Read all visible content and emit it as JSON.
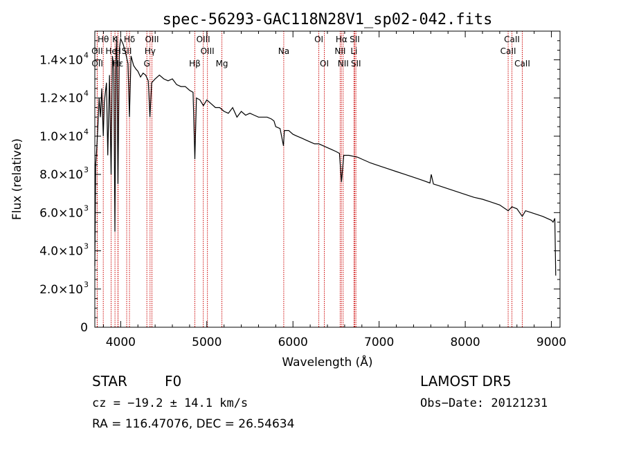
{
  "chart_data": {
    "type": "line",
    "title": "spec-56293-GAC118N28V1_sp02-042.fits",
    "xlabel": "Wavelength (Å)",
    "ylabel": "Flux (relative)",
    "xlim": [
      3700,
      9100
    ],
    "ylim": [
      0,
      15500
    ],
    "x_ticks": [
      4000,
      5000,
      6000,
      7000,
      8000,
      9000
    ],
    "y_ticks": [
      {
        "value": 0,
        "mantissa": "0",
        "exponent": ""
      },
      {
        "value": 2000,
        "mantissa": "2.0×10",
        "exponent": "3"
      },
      {
        "value": 4000,
        "mantissa": "4.0×10",
        "exponent": "3"
      },
      {
        "value": 6000,
        "mantissa": "6.0×10",
        "exponent": "3"
      },
      {
        "value": 8000,
        "mantissa": "8.0×10",
        "exponent": "3"
      },
      {
        "value": 10000,
        "mantissa": "1.0×10",
        "exponent": "4"
      },
      {
        "value": 12000,
        "mantissa": "1.2×10",
        "exponent": "4"
      },
      {
        "value": 14000,
        "mantissa": "1.4×10",
        "exponent": "4"
      }
    ],
    "series": [
      {
        "color": "#000000",
        "x": [
          3700,
          3710,
          3720,
          3735,
          3750,
          3765,
          3780,
          3798,
          3810,
          3835,
          3850,
          3870,
          3889,
          3905,
          3920,
          3933,
          3945,
          3955,
          3968,
          3985,
          4000,
          4030,
          4060,
          4085,
          4102,
          4120,
          4150,
          4180,
          4200,
          4230,
          4260,
          4290,
          4320,
          4340,
          4360,
          4400,
          4450,
          4500,
          4550,
          4600,
          4650,
          4700,
          4750,
          4800,
          4840,
          4861,
          4880,
          4920,
          4960,
          5000,
          5050,
          5100,
          5150,
          5200,
          5250,
          5300,
          5350,
          5400,
          5450,
          5500,
          5550,
          5600,
          5650,
          5700,
          5750,
          5780,
          5800,
          5850,
          5890,
          5900,
          5950,
          6000,
          6050,
          6100,
          6150,
          6200,
          6250,
          6300,
          6350,
          6400,
          6450,
          6500,
          6540,
          6563,
          6590,
          6650,
          6700,
          6750,
          6800,
          6900,
          7000,
          7100,
          7200,
          7300,
          7400,
          7500,
          7590,
          7605,
          7630,
          7700,
          7800,
          7900,
          8000,
          8100,
          8200,
          8300,
          8400,
          8498,
          8542,
          8600,
          8662,
          8700,
          8800,
          8900,
          9000,
          9020,
          9040,
          9050
        ],
        "y": [
          3200,
          8500,
          9200,
          10500,
          12000,
          11000,
          12500,
          10000,
          11800,
          12800,
          9000,
          13200,
          8000,
          14200,
          13500,
          5000,
          14000,
          15200,
          7500,
          14600,
          15100,
          14800,
          14300,
          13800,
          11000,
          14200,
          13700,
          13500,
          13400,
          13100,
          13300,
          13200,
          12900,
          11000,
          12800,
          13000,
          13200,
          13000,
          12900,
          13000,
          12700,
          12600,
          12600,
          12400,
          12300,
          8800,
          12000,
          11900,
          11600,
          11900,
          11700,
          11500,
          11500,
          11300,
          11200,
          11500,
          11000,
          11300,
          11100,
          11200,
          11100,
          11000,
          11000,
          11000,
          10900,
          10800,
          10500,
          10400,
          9500,
          10300,
          10300,
          10100,
          10000,
          9900,
          9800,
          9700,
          9600,
          9600,
          9500,
          9400,
          9300,
          9200,
          9100,
          7600,
          9000,
          9000,
          8950,
          8900,
          8800,
          8600,
          8450,
          8300,
          8150,
          8000,
          7850,
          7700,
          7550,
          8000,
          7500,
          7400,
          7250,
          7100,
          6950,
          6800,
          6700,
          6550,
          6400,
          6100,
          6300,
          6200,
          5800,
          6100,
          5950,
          5800,
          5600,
          5500,
          5700,
          2700
        ]
      }
    ],
    "lines": [
      {
        "label": "Hθ",
        "x": 3798,
        "row": 0
      },
      {
        "label": "OII",
        "x": 3727,
        "row": 1
      },
      {
        "label": "OII",
        "x": 3729,
        "row": 2
      },
      {
        "label": "K",
        "x": 3934,
        "row": 0
      },
      {
        "label": "He",
        "x": 3889,
        "row": 1
      },
      {
        "label": "Hε",
        "x": 3970,
        "row": 2
      },
      {
        "label": "Hδ",
        "x": 4102,
        "row": 0
      },
      {
        "label": "SII",
        "x": 4070,
        "row": 1
      },
      {
        "label": "H",
        "x": 3968,
        "row": 1
      },
      {
        "label": "OIII",
        "x": 4363,
        "row": 0
      },
      {
        "label": "Hγ",
        "x": 4341,
        "row": 1
      },
      {
        "label": "G",
        "x": 4304,
        "row": 2
      },
      {
        "label": "OIII",
        "x": 4959,
        "row": 0
      },
      {
        "label": "OIII",
        "x": 5007,
        "row": 1
      },
      {
        "label": "Hβ",
        "x": 4861,
        "row": 2
      },
      {
        "label": "Mg",
        "x": 5175,
        "row": 2
      },
      {
        "label": "Na",
        "x": 5893,
        "row": 1
      },
      {
        "label": "OI",
        "x": 6300,
        "row": 0
      },
      {
        "label": "OI",
        "x": 6364,
        "row": 2
      },
      {
        "label": "Hα",
        "x": 6563,
        "row": 0
      },
      {
        "label": "NII",
        "x": 6548,
        "row": 1
      },
      {
        "label": "NII",
        "x": 6583,
        "row": 2
      },
      {
        "label": "SII",
        "x": 6717,
        "row": 0
      },
      {
        "label": "Li",
        "x": 6708,
        "row": 1
      },
      {
        "label": "SII",
        "x": 6731,
        "row": 2
      },
      {
        "label": "CaII",
        "x": 8542,
        "row": 0
      },
      {
        "label": "CaII",
        "x": 8498,
        "row": 1
      },
      {
        "label": "CaII",
        "x": 8662,
        "row": 2
      }
    ],
    "line_color": "#cc0000",
    "grid": false
  },
  "footer": {
    "class_label": "STAR",
    "subclass": "F0",
    "survey": "LAMOST DR5",
    "cz_line": "cz = −19.2 ± 14.1 km/s",
    "obs_date": "Obs−Date: 20121231",
    "coords": "RA = 116.47076, DEC =  26.54634"
  }
}
